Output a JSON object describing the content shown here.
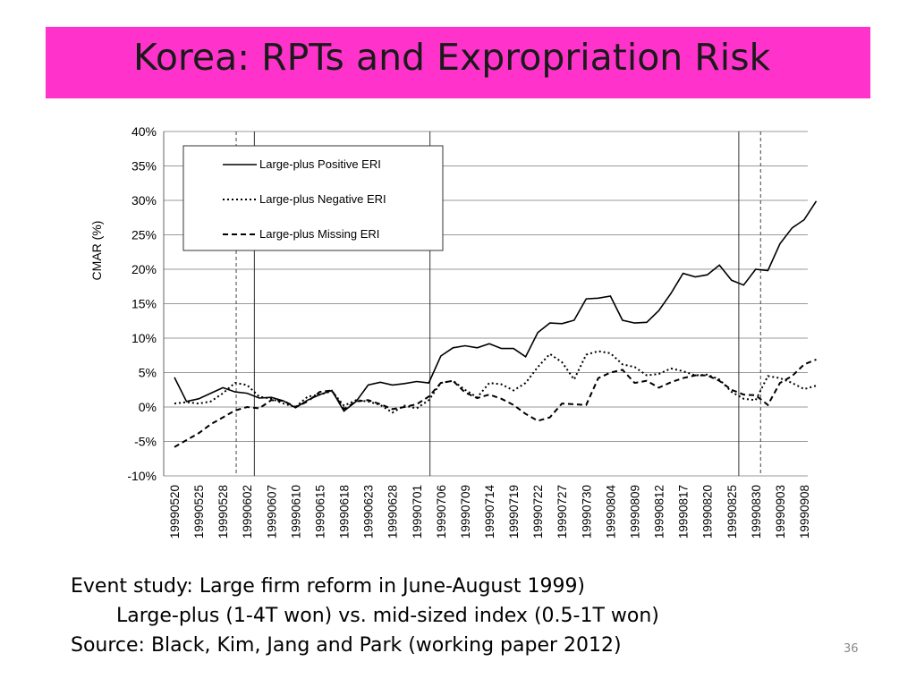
{
  "slide": {
    "title": "Korea:  RPTs and Expropriation Risk",
    "title_bar_color": "#ff33cc",
    "captions": [
      "Event study:  Large firm reform in June-August 1999)",
      "Large-plus (1-4T won) vs. mid-sized index (0.5-1T won)",
      "Source:  Black, Kim, Jang and Park (working paper 2012)"
    ],
    "page_number": "36"
  },
  "chart_data": {
    "type": "line",
    "title": "",
    "xlabel": "",
    "ylabel": "CMAR (%)",
    "ylim": [
      -10,
      40
    ],
    "yticks": [
      -10,
      -5,
      0,
      5,
      10,
      15,
      20,
      25,
      30,
      35,
      40
    ],
    "ytick_labels": [
      "-10%",
      "-5%",
      "0%",
      "5%",
      "10%",
      "15%",
      "20%",
      "25%",
      "30%",
      "35%",
      "40%"
    ],
    "grid": true,
    "legend_position": "top-left",
    "n_points": 54,
    "x_tick_labels": [
      "19990520",
      "19990525",
      "19990528",
      "19990602",
      "19990607",
      "19990610",
      "19990615",
      "19990618",
      "19990623",
      "19990628",
      "19990701",
      "19990706",
      "19990709",
      "19990714",
      "19990719",
      "19990722",
      "19990727",
      "19990730",
      "19990804",
      "19990809",
      "19990812",
      "19990817",
      "19990820",
      "19990825",
      "19990830",
      "19990903",
      "19990908"
    ],
    "event_lines": [
      {
        "index": 5.1,
        "style": "dashed"
      },
      {
        "index": 6.6,
        "style": "solid"
      },
      {
        "index": 21.1,
        "style": "solid"
      },
      {
        "index": 46.6,
        "style": "solid"
      },
      {
        "index": 48.4,
        "style": "dashed"
      }
    ],
    "series": [
      {
        "name": "Large-plus Positive ERI",
        "dash": "solid",
        "values": [
          4.3,
          0.8,
          1.2,
          2.0,
          2.8,
          2.2,
          2.0,
          1.3,
          1.4,
          0.9,
          -0.1,
          1.0,
          1.8,
          2.4,
          -0.6,
          0.8,
          3.2,
          3.6,
          3.2,
          3.4,
          3.7,
          3.5,
          7.4,
          8.6,
          8.9,
          8.6,
          9.2,
          8.5,
          8.5,
          7.3,
          10.8,
          12.2,
          12.1,
          12.6,
          15.7,
          15.8,
          16.1,
          12.6,
          12.2,
          12.3,
          14.0,
          16.5,
          19.4,
          18.9,
          19.2,
          20.6,
          18.4,
          17.7,
          20.0,
          19.8,
          23.7,
          26.0,
          27.2,
          29.9
        ]
      },
      {
        "name": "Large-plus Negative ERI",
        "dash": "dotted",
        "values": [
          0.5,
          0.7,
          0.5,
          0.8,
          2.0,
          3.5,
          3.2,
          1.5,
          1.2,
          0.5,
          0.0,
          1.5,
          1.8,
          2.3,
          0.2,
          1.0,
          0.8,
          0.3,
          -0.8,
          0.2,
          -0.2,
          1.0,
          3.5,
          3.8,
          2.5,
          1.4,
          3.5,
          3.3,
          2.4,
          3.5,
          5.8,
          7.7,
          6.5,
          4.0,
          7.6,
          8.1,
          7.8,
          6.2,
          5.8,
          4.6,
          4.8,
          5.6,
          5.2,
          4.6,
          4.7,
          4.0,
          2.2,
          1.2,
          1.0,
          4.5,
          4.2,
          3.5,
          2.6,
          3.1
        ]
      },
      {
        "name": "Large-plus Missing ERI",
        "dash": "dashed",
        "values": [
          -5.8,
          -4.8,
          -3.8,
          -2.5,
          -1.5,
          -0.5,
          0.0,
          -0.2,
          1.0,
          0.9,
          0.0,
          0.8,
          2.2,
          2.4,
          -0.3,
          0.8,
          1.0,
          0.4,
          -0.3,
          0.0,
          0.4,
          1.5,
          3.5,
          3.8,
          2.1,
          1.3,
          1.8,
          1.2,
          0.3,
          -1.0,
          -2.0,
          -1.5,
          0.5,
          0.4,
          0.3,
          4.2,
          5.0,
          5.4,
          3.5,
          3.8,
          2.8,
          3.6,
          4.2,
          4.6,
          4.6,
          3.8,
          2.5,
          1.8,
          1.7,
          0.3,
          3.5,
          4.5,
          6.2,
          6.9
        ]
      }
    ]
  }
}
